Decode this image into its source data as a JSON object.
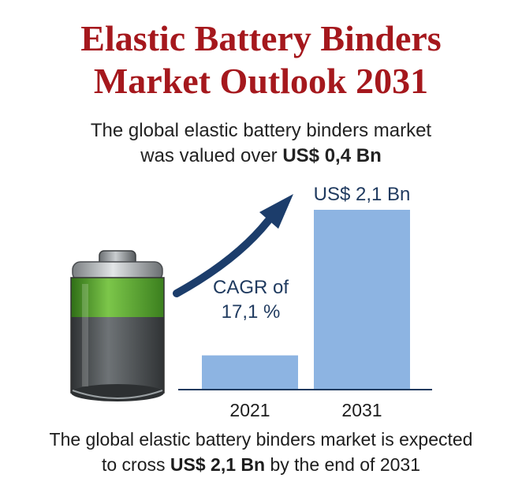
{
  "header": {
    "title_line1": "Elastic Battery Binders",
    "title_line2": "Market Outlook 2031"
  },
  "intro": {
    "line1": "The global elastic battery binders market",
    "line2_prefix": "was valued over ",
    "line2_value": "US$ 0,4 Bn"
  },
  "footer": {
    "line1": "The global elastic battery binders market is expected",
    "line2_prefix": "to cross ",
    "line2_value": "US$ 2,1 Bn",
    "line2_suffix": " by the end of 2031"
  },
  "cagr": {
    "line1": "CAGR of",
    "line2": "17,1 %"
  },
  "chart_data": {
    "type": "bar",
    "categories": [
      "2021",
      "2031"
    ],
    "values": [
      0.4,
      2.1
    ],
    "value_labels": [
      "",
      "US$ 2,1 Bn"
    ],
    "title": "",
    "xlabel": "",
    "ylabel": "",
    "ylim": [
      0,
      2.1
    ],
    "grid": false,
    "legend": "none",
    "colors": {
      "bar": "#8db4e2",
      "axis": "#1f3a5f",
      "arrow": "#1c3d6b",
      "value_label": "#1f3a5f"
    }
  },
  "colors": {
    "title": "#a5181d",
    "battery_green": "#5aa531",
    "battery_body": "#55595c"
  }
}
